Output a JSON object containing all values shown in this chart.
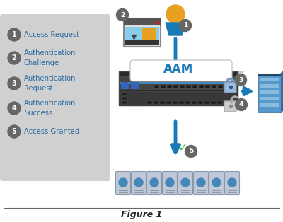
{
  "title": "Figure 1",
  "bg_color": "#ffffff",
  "legend_bg": "#d0d0d0",
  "legend_items": [
    {
      "num": "1",
      "text": "Access Request",
      "multiline": false
    },
    {
      "num": "2",
      "text": "Authentication\nChallenge",
      "multiline": true
    },
    {
      "num": "3",
      "text": "Authentication\nRequest",
      "multiline": true
    },
    {
      "num": "4",
      "text": "Authentication\nSuccess",
      "multiline": true
    },
    {
      "num": "5",
      "text": "Access Granted",
      "multiline": false
    }
  ],
  "legend_text_color": "#2b6ca3",
  "arrow_color": "#1a7ab5",
  "aam_label_color": "#1a7ab5",
  "num_circle_color": "#666666",
  "person_head_color": "#e8a020",
  "person_body_color": "#1a7ab5",
  "device_color": "#3a3a3a",
  "building_color": "#4488bb",
  "server_color": "#c0c8d8",
  "figure_caption": "Figure 1"
}
